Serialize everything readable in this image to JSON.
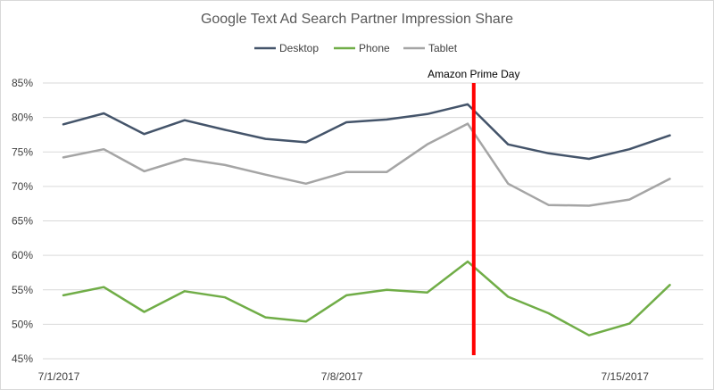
{
  "chart_data": {
    "type": "line",
    "title": "Google Text Ad Search Partner Impression Share",
    "xlabel": "",
    "ylabel": "",
    "ylim": [
      0.45,
      0.85
    ],
    "yticks": [
      "85%",
      "80%",
      "75%",
      "70%",
      "65%",
      "60%",
      "55%",
      "50%",
      "45%"
    ],
    "ytick_values": [
      0.85,
      0.8,
      0.75,
      0.7,
      0.65,
      0.6,
      0.55,
      0.5,
      0.45
    ],
    "x": [
      "7/1/2017",
      "7/2/2017",
      "7/3/2017",
      "7/4/2017",
      "7/5/2017",
      "7/6/2017",
      "7/7/2017",
      "7/8/2017",
      "7/9/2017",
      "7/10/2017",
      "7/11/2017",
      "7/12/2017",
      "7/13/2017",
      "7/14/2017",
      "7/15/2017",
      "7/16/2017"
    ],
    "xtick_labels": [
      {
        "index": 0,
        "label": "7/1/2017"
      },
      {
        "index": 7,
        "label": "7/8/2017"
      },
      {
        "index": 14,
        "label": "7/15/2017"
      }
    ],
    "series": [
      {
        "name": "Desktop",
        "color": "#44546a",
        "values": [
          0.79,
          0.806,
          0.776,
          0.796,
          0.782,
          0.769,
          0.764,
          0.793,
          0.797,
          0.805,
          0.819,
          0.761,
          0.748,
          0.74,
          0.754,
          0.774
        ]
      },
      {
        "name": "Phone",
        "color": "#70ad47",
        "values": [
          0.542,
          0.554,
          0.518,
          0.548,
          0.539,
          0.51,
          0.504,
          0.542,
          0.55,
          0.546,
          0.591,
          0.54,
          0.516,
          0.484,
          0.501,
          0.557
        ]
      },
      {
        "name": "Tablet",
        "color": "#a5a5a5",
        "values": [
          0.742,
          0.754,
          0.722,
          0.74,
          0.731,
          0.717,
          0.704,
          0.721,
          0.721,
          0.761,
          0.791,
          0.704,
          0.673,
          0.672,
          0.681,
          0.711
        ]
      }
    ],
    "annotation": {
      "label": "Amazon Prime Day",
      "x_index": 10.15,
      "color": "#ff0000"
    },
    "grid": "horizontal",
    "legend_position": "top"
  }
}
